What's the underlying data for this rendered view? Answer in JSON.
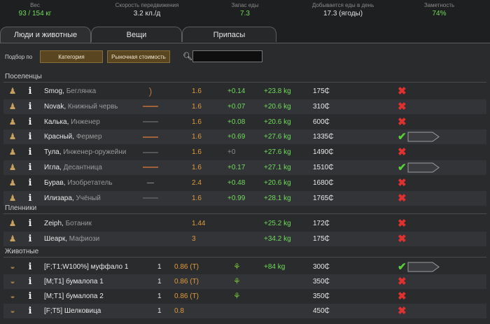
{
  "stats": [
    {
      "label": "Вес",
      "value": "93 / 154 кг",
      "green": true
    },
    {
      "label": "Скорость передвижения",
      "value": "3.2 кл./д",
      "green": false
    },
    {
      "label": "Запас еды",
      "value": "7.3",
      "green": true
    },
    {
      "label": "Добывается еды в день",
      "value": "17.3 (ягоды)",
      "green": false
    },
    {
      "label": "Заметность",
      "value": "74%",
      "green": true
    }
  ],
  "tabs": [
    {
      "label": "Люди и животные",
      "active": true
    },
    {
      "label": "Вещи",
      "active": false
    },
    {
      "label": "Припасы",
      "active": false
    }
  ],
  "sort": {
    "label": "Подбор по",
    "btn_category": "Категория",
    "btn_market": "Рыночная стоимость",
    "search_placeholder": ""
  },
  "groups": {
    "colonists": "Поселенцы",
    "prisoners": "Пленники",
    "animals": "Животные"
  },
  "colonists": [
    {
      "name": "Smog",
      "title": "Беглянка",
      "weapon": "bow",
      "move": "1.6",
      "gain": "+0.14",
      "food": "+23.8 kg",
      "value": "175₵",
      "action": "x"
    },
    {
      "name": "Novak",
      "title": "Книжный червь",
      "weapon": "stick",
      "move": "1.6",
      "gain": "+0.07",
      "food": "+20.6 kg",
      "value": "310₵",
      "action": "x"
    },
    {
      "name": "Калька",
      "title": "Инженер",
      "weapon": "gun",
      "move": "1.6",
      "gain": "+0.08",
      "food": "+20.6 kg",
      "value": "600₵",
      "action": "x"
    },
    {
      "name": "Красный",
      "title": "Фермер",
      "weapon": "stick",
      "move": "1.6",
      "gain": "+0.69",
      "food": "+27.6 kg",
      "value": "1335₵",
      "action": "check"
    },
    {
      "name": "Тула",
      "title": "Инженер-оружейни",
      "weapon": "gun",
      "move": "1.6",
      "gain": "+0",
      "food": "+27.6 kg",
      "value": "1490₵",
      "action": "x"
    },
    {
      "name": "Игла",
      "title": "Десантница",
      "weapon": "stick",
      "move": "1.6",
      "gain": "+0.17",
      "food": "+27.1 kg",
      "value": "1510₵",
      "action": "check"
    },
    {
      "name": "Бурав",
      "title": "Изобретатель",
      "weapon": "knife",
      "move": "2.4",
      "gain": "+0.48",
      "food": "+20.6 kg",
      "value": "1680₵",
      "action": "x"
    },
    {
      "name": "Илизара",
      "title": "Учёный",
      "weapon": "gun",
      "move": "1.6",
      "gain": "+0.99",
      "food": "+28.1 kg",
      "value": "1765₵",
      "action": "x"
    }
  ],
  "prisoners": [
    {
      "name": "Zeiph",
      "title": "Ботаник",
      "move": "1.44",
      "food": "+25.2 kg",
      "value": "172₵",
      "action": "x"
    },
    {
      "name": "Шеарк",
      "title": "Мафиози",
      "move": "3",
      "food": "+34.2 kg",
      "value": "175₵",
      "action": "x"
    }
  ],
  "animals": [
    {
      "name": "[F;T1;W100%] муффало 1",
      "tame": "1",
      "move": "0.86 (T)",
      "plant": true,
      "food": "+84 kg",
      "value": "300₵",
      "action": "check"
    },
    {
      "name": "[M;T1] бумалопа 1",
      "tame": "1",
      "move": "0.86 (T)",
      "plant": true,
      "food": "",
      "value": "350₵",
      "action": "x"
    },
    {
      "name": "[M;T1] бумалопа 2",
      "tame": "1",
      "move": "0.86 (T)",
      "plant": true,
      "food": "",
      "value": "350₵",
      "action": "x"
    },
    {
      "name": "[F;T5] Шелковица",
      "tame": "1",
      "move": "0.8",
      "plant": false,
      "food": "",
      "value": "450₵",
      "action": "x"
    }
  ],
  "icons": {
    "info": "info-icon",
    "remove": "x-icon",
    "add": "check-icon",
    "plant": "plant-icon",
    "search": "search-icon"
  },
  "colors": {
    "accent_green": "#6fdc5a",
    "accent_orange": "#e09a3a",
    "remove_red": "#e03030",
    "button_brown": "#5a4521"
  }
}
